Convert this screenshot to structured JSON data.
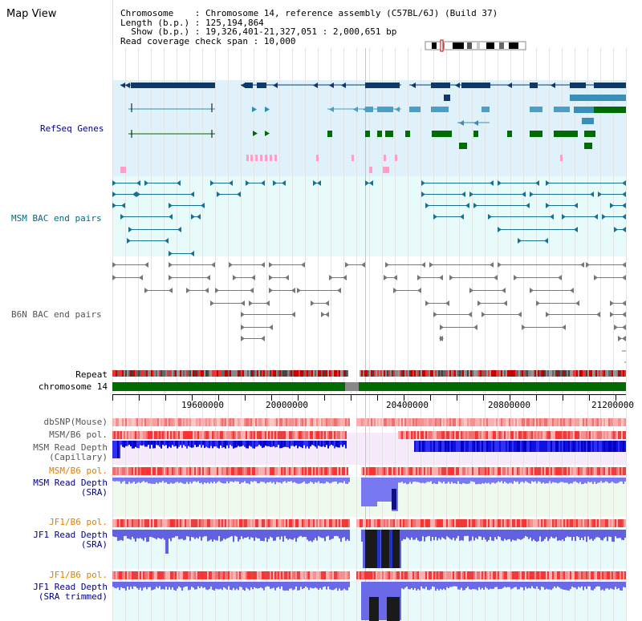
{
  "title": "Map View",
  "info": {
    "line1": "Chromosome    : Chromosome 14, reference assembly (C57BL/6J) (Build 37)",
    "line2": "Length (b.p.) : 125,194,864",
    "line3": "  Show (b.p.) : 19,326,401-21,327,051 : 2,000,651 bp",
    "line4": "Read coverage check span : 10,000"
  },
  "tracks": {
    "refseq": "RefSeq Genes",
    "msm_bac": "MSM BAC end pairs",
    "b6n_bac": "B6N BAC end pairs",
    "repeat": "Repeat",
    "chromosome": "chromosome 14",
    "dbsnp": "dbSNP(Mouse)",
    "msm_b6_pol": "MSM/B6 pol.",
    "msm_rd_cap1": "MSM Read Depth",
    "msm_rd_cap2": "(Capillary)",
    "msm_b6_pol2": "MSM/B6 pol.",
    "msm_rd_sra1": "MSM Read Depth",
    "msm_rd_sra2": "(SRA)",
    "jf1_b6_pol": "JF1/B6 pol.",
    "jf1_rd1": "JF1 Read Depth",
    "jf1_rd2": "(SRA)",
    "jf1_b6_pol2": "JF1/B6 pol.",
    "jf1_rdt1": "JF1 Read Depth",
    "jf1_rdt2": "(SRA trimmed)"
  },
  "axis_ticks": [
    "19600000",
    "20000000",
    "20400000",
    "20800000",
    "21200000"
  ],
  "colors": {
    "refseq_bg": "#dff1fb",
    "bac_bg": "#e8fbfb",
    "navy": "#0b3a6e",
    "teal": "#2a8fb0",
    "green": "#006b00",
    "pink": "#ff9fc8",
    "chrom_green": "#006b00"
  }
}
